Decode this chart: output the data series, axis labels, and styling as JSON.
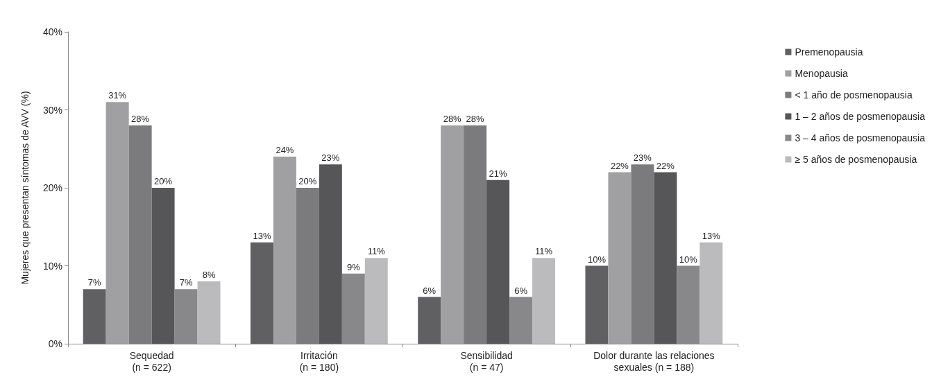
{
  "chart_data": {
    "type": "bar",
    "ylabel": "Mujeres que presentan síntomas de AVV (%)",
    "categories": [
      "Sequedad\n(n = 622)",
      "Irritación\n(n = 180)",
      "Sensibilidad\n(n = 47)",
      "Dolor durante las relaciones\nsexuales (n = 188)"
    ],
    "series": [
      {
        "name": "Premenopausia",
        "color": "#606062",
        "values": [
          7,
          13,
          6,
          10
        ],
        "value_labels": [
          "7%",
          "13%",
          "6%",
          "10%"
        ]
      },
      {
        "name": "Menopausia",
        "color": "#a0a0a2",
        "values": [
          31,
          24,
          28,
          22
        ],
        "value_labels": [
          "31%",
          "24%",
          "28%",
          "22%"
        ]
      },
      {
        "name": "< 1 año de posmenopausia",
        "color": "#7b7b7d",
        "values": [
          28,
          20,
          28,
          23
        ],
        "value_labels": [
          "28%",
          "20%",
          "28%",
          "23%"
        ]
      },
      {
        "name": "1 – 2 años de posmenopausia",
        "color": "#565658",
        "values": [
          20,
          23,
          21,
          22
        ],
        "value_labels": [
          "20%",
          "23%",
          "21%",
          "22%"
        ]
      },
      {
        "name": "3 – 4 años de posmenopausia",
        "color": "#88888b",
        "values": [
          7,
          9,
          6,
          10
        ],
        "value_labels": [
          "7%",
          "9%",
          "6%",
          "10%"
        ]
      },
      {
        "name": "≥ 5 años de posmenopausia",
        "color": "#bbbbbd",
        "values": [
          8,
          11,
          11,
          13
        ],
        "value_labels": [
          "8%",
          "11%",
          "11%",
          "13%"
        ]
      }
    ],
    "ylim": [
      0,
      40
    ],
    "yticks": [
      {
        "value": 0,
        "label": "0%"
      },
      {
        "value": 10,
        "label": "10%"
      },
      {
        "value": 20,
        "label": "20%"
      },
      {
        "value": 30,
        "label": "30%"
      },
      {
        "value": 40,
        "label": "40%"
      }
    ],
    "grid": false,
    "legend": "right"
  }
}
